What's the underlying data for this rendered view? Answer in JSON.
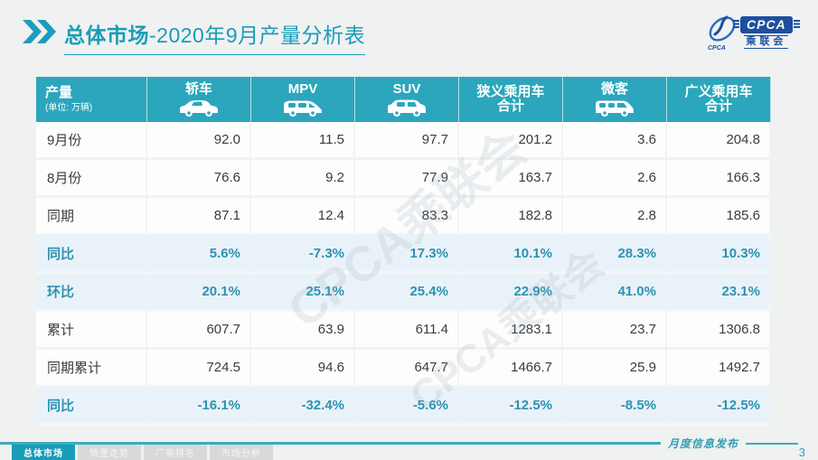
{
  "title": {
    "bold": "总体市场",
    "rest": "-2020年9月产量分析表"
  },
  "logo": {
    "abbr": "CPCA",
    "name_cn": "乘联会"
  },
  "watermark": "CPCA乘联会",
  "table": {
    "corner": {
      "label": "产量",
      "sub": "(单位: 万辆)"
    },
    "columns": [
      {
        "label": "轿车",
        "label2": "",
        "icon": "sedan-icon"
      },
      {
        "label": "MPV",
        "label2": "",
        "icon": "mpv-icon"
      },
      {
        "label": "SUV",
        "label2": "",
        "icon": "suv-icon"
      },
      {
        "label": "狭义乘用车",
        "label2": "合计",
        "icon": ""
      },
      {
        "label": "微客",
        "label2": "",
        "icon": "van-icon"
      },
      {
        "label": "广义乘用车",
        "label2": "合计",
        "icon": ""
      }
    ],
    "rows": [
      {
        "label": "9月份",
        "type": "normal",
        "values": [
          "92.0",
          "11.5",
          "97.7",
          "201.2",
          "3.6",
          "204.8"
        ]
      },
      {
        "label": "8月份",
        "type": "normal",
        "values": [
          "76.6",
          "9.2",
          "77.9",
          "163.7",
          "2.6",
          "166.3"
        ]
      },
      {
        "label": "同期",
        "type": "normal",
        "values": [
          "87.1",
          "12.4",
          "83.3",
          "182.8",
          "2.8",
          "185.6"
        ]
      },
      {
        "label": "同比",
        "type": "highlight",
        "values": [
          "5.6%",
          "-7.3%",
          "17.3%",
          "10.1%",
          "28.3%",
          "10.3%"
        ]
      },
      {
        "label": "环比",
        "type": "highlight",
        "values": [
          "20.1%",
          "25.1%",
          "25.4%",
          "22.9%",
          "41.0%",
          "23.1%"
        ]
      },
      {
        "label": "累计",
        "type": "normal",
        "values": [
          "607.7",
          "63.9",
          "611.4",
          "1283.1",
          "23.7",
          "1306.8"
        ]
      },
      {
        "label": "同期累计",
        "type": "normal",
        "values": [
          "724.5",
          "94.6",
          "647.7",
          "1466.7",
          "25.9",
          "1492.7"
        ]
      },
      {
        "label": "同比",
        "type": "highlight",
        "values": [
          "-16.1%",
          "-32.4%",
          "-5.6%",
          "-12.5%",
          "-8.5%",
          "-12.5%"
        ]
      }
    ]
  },
  "footer": {
    "tabs": [
      {
        "label": "总体市场",
        "active": true
      },
      {
        "label": "销量走势",
        "active": false
      },
      {
        "label": "厂商排名",
        "active": false
      },
      {
        "label": "市场分析",
        "active": false
      }
    ],
    "release_label": "月度信息发布",
    "page_number": "3"
  },
  "colors": {
    "accent_teal": "#2ba6bc",
    "title_teal": "#189db8",
    "highlight_row_bg": "#e9f2f8",
    "highlight_text": "#2c93b2",
    "logo_blue": "#1d4f9e",
    "footer_line": "#3aacbf"
  }
}
